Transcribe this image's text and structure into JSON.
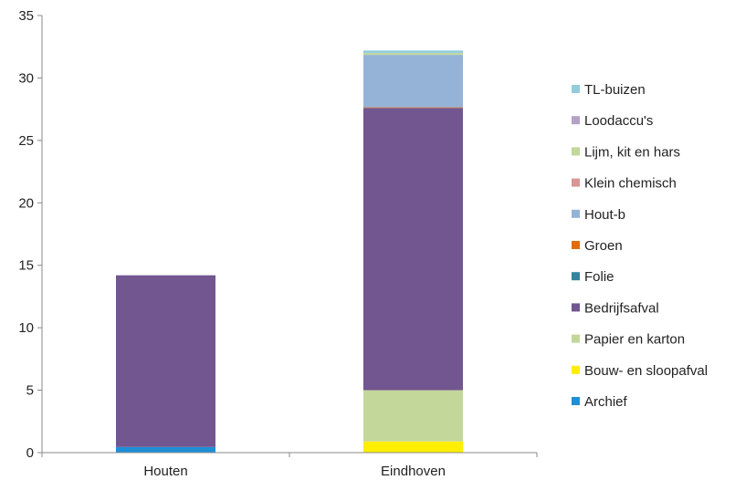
{
  "chart_data": {
    "type": "bar",
    "stacked": true,
    "categories": [
      "Houten",
      "Eindhoven"
    ],
    "ylim": [
      0,
      35
    ],
    "yticks": [
      0,
      5,
      10,
      15,
      20,
      25,
      30,
      35
    ],
    "grid": false,
    "legend_position": "right",
    "series": [
      {
        "name": "Archief",
        "color": "#1f8fd6",
        "values": [
          0.45,
          0
        ]
      },
      {
        "name": "Bouw- en sloopafval",
        "color": "#ffee00",
        "values": [
          0,
          0.9
        ]
      },
      {
        "name": "Papier en karton",
        "color": "#c4d79b",
        "values": [
          0,
          4.1
        ]
      },
      {
        "name": "Bedrijfsafval",
        "color": "#715690",
        "values": [
          13.75,
          22.6
        ]
      },
      {
        "name": "Folie",
        "color": "#31859c",
        "values": [
          0,
          0
        ]
      },
      {
        "name": "Groen",
        "color": "#e46c0a",
        "values": [
          0,
          0.05
        ]
      },
      {
        "name": "Hout-b",
        "color": "#95b3d7",
        "values": [
          0,
          4.2
        ]
      },
      {
        "name": "Klein chemisch",
        "color": "#d99694",
        "values": [
          0,
          0
        ]
      },
      {
        "name": "Lijm, kit en hars",
        "color": "#c3d69b",
        "values": [
          0,
          0.15
        ]
      },
      {
        "name": "Loodaccu's",
        "color": "#b3a2c7",
        "values": [
          0,
          0
        ]
      },
      {
        "name": "TL-buizen",
        "color": "#93cddd",
        "values": [
          0,
          0.2
        ]
      }
    ],
    "legend_order": [
      "TL-buizen",
      "Loodaccu's",
      "Lijm, kit en hars",
      "Klein chemisch",
      "Hout-b",
      "Groen",
      "Folie",
      "Bedrijfsafval",
      "Papier en karton",
      "Bouw- en sloopafval",
      "Archief"
    ]
  }
}
